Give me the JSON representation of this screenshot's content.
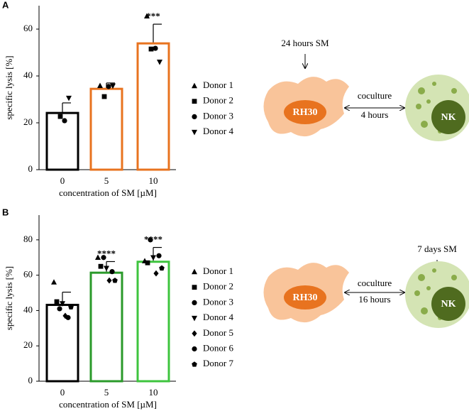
{
  "chart_data": [
    {
      "type": "bar",
      "panel": "A",
      "ylabel": "specific lysis [%]",
      "xlabel": "concentration of SM [µM]",
      "categories": [
        "0",
        "5",
        "10"
      ],
      "values": [
        24.2,
        34.5,
        53.9
      ],
      "errors": [
        4.3,
        2.5,
        8.2
      ],
      "colors": [
        "#000000",
        "#e8731f",
        "#e8731f"
      ],
      "annotations": [
        null,
        null,
        "***"
      ],
      "ylim": [
        0,
        70
      ],
      "yticks": [
        0,
        20,
        40,
        60
      ],
      "series": [
        {
          "name": "Donor 1",
          "marker": "triangle-up",
          "values": [
            null,
            35.8,
            65.5
          ]
        },
        {
          "name": "Donor 2",
          "marker": "square",
          "values": [
            22.7,
            31.2,
            51.5
          ]
        },
        {
          "name": "Donor 3",
          "marker": "circle",
          "values": [
            20.9,
            35.5,
            51.8
          ]
        },
        {
          "name": "Donor 4",
          "marker": "triangle-down",
          "values": [
            30.6,
            35.8,
            46.0
          ]
        }
      ]
    },
    {
      "type": "bar",
      "panel": "B",
      "ylabel": "specific lysis [%]",
      "xlabel": "concentration of SM [µM]",
      "categories": [
        "0",
        "5",
        "10"
      ],
      "values": [
        43.2,
        61.4,
        67.6
      ],
      "errors": [
        7.2,
        6.3,
        8.1
      ],
      "colors": [
        "#000000",
        "#2a9a2a",
        "#3ec43e"
      ],
      "annotations": [
        null,
        "****",
        "****"
      ],
      "ylim": [
        0,
        94
      ],
      "yticks": [
        0,
        20,
        40,
        60,
        80
      ],
      "series": [
        {
          "name": "Donor 1",
          "marker": "triangle-up",
          "values": [
            56,
            70,
            68
          ]
        },
        {
          "name": "Donor 2",
          "marker": "square",
          "values": [
            45,
            65,
            67
          ]
        },
        {
          "name": "Donor 3",
          "marker": "circle",
          "values": [
            41,
            70,
            80
          ]
        },
        {
          "name": "Donor 4",
          "marker": "triangle-down",
          "values": [
            44,
            64,
            70
          ]
        },
        {
          "name": "Donor 5",
          "marker": "diamond",
          "values": [
            37,
            57,
            61
          ]
        },
        {
          "name": "Donor 6",
          "marker": "circle",
          "values": [
            36,
            62,
            71
          ]
        },
        {
          "name": "Donor 7",
          "marker": "pentagon",
          "values": [
            42,
            57,
            64
          ]
        }
      ]
    }
  ],
  "diagrams": [
    {
      "treatment": "24 hours SM",
      "tumor": "RH30",
      "arrow_top": "coculture",
      "arrow_bottom": "4 hours",
      "effector": "NK"
    },
    {
      "treatment": "7 days SM",
      "tumor": "RH30",
      "arrow_top": "coculture",
      "arrow_bottom": "16 hours",
      "effector": "NK"
    }
  ]
}
